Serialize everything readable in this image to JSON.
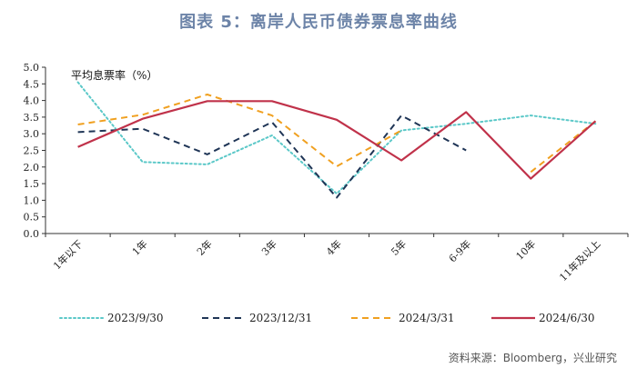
{
  "title": "图表 5：离岸人民币债券票息率曲线",
  "source": "资料来源：Bloomberg，兴业研究",
  "chart_data": {
    "type": "line",
    "ylabel": "平均息票率（%）",
    "ylim": [
      0,
      5
    ],
    "yticks": [
      "0.0",
      "0.5",
      "1.0",
      "1.5",
      "2.0",
      "2.5",
      "3.0",
      "3.5",
      "4.0",
      "4.5",
      "5.0"
    ],
    "categories": [
      "1年以下",
      "1年",
      "2年",
      "3年",
      "4年",
      "5年",
      "6-9年",
      "10年",
      "11年及以上"
    ],
    "grid": false,
    "legend_position": "bottom",
    "series": [
      {
        "name": "2023/9/30",
        "color": "#5bc8c8",
        "style": "dotted",
        "values": [
          4.55,
          2.15,
          2.08,
          2.95,
          1.2,
          3.1,
          3.3,
          3.55,
          3.3
        ]
      },
      {
        "name": "2023/12/31",
        "color": "#1f3556",
        "style": "dashed",
        "values": [
          3.05,
          3.15,
          2.38,
          3.35,
          1.08,
          3.55,
          2.5,
          null,
          null
        ]
      },
      {
        "name": "2024/3/31",
        "color": "#f0a020",
        "style": "dashed",
        "values": [
          3.28,
          3.57,
          4.18,
          3.55,
          2.02,
          3.1,
          null,
          1.85,
          3.38
        ]
      },
      {
        "name": "2024/6/30",
        "color": "#c0324a",
        "style": "solid",
        "values": [
          2.6,
          3.45,
          3.98,
          3.98,
          3.42,
          2.2,
          3.65,
          1.65,
          3.38
        ]
      }
    ]
  }
}
